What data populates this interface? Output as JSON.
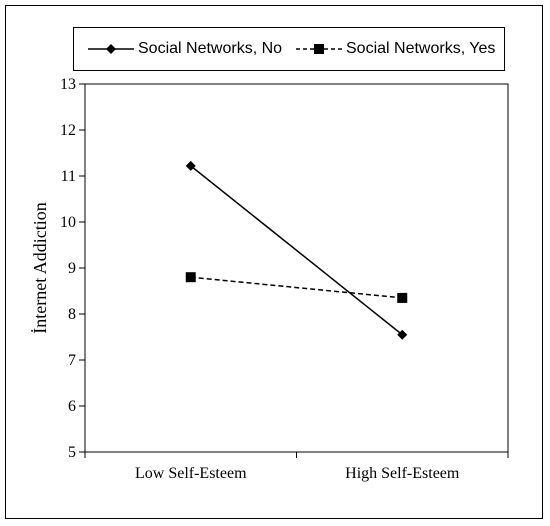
{
  "chart_data": {
    "type": "line",
    "title": "",
    "xlabel": "",
    "ylabel": "İnternet Addiction",
    "categories": [
      "Low Self-Esteem",
      "High Self-Esteem"
    ],
    "ylim": [
      5,
      13
    ],
    "yticks": [
      5,
      6,
      7,
      8,
      9,
      10,
      11,
      12,
      13
    ],
    "grid": false,
    "legend_position": "top",
    "series": [
      {
        "name": "Social Networks, No",
        "values": [
          11.22,
          7.55
        ],
        "line_style": "solid",
        "marker": "diamond",
        "color": "#000000"
      },
      {
        "name": "Social Networks, Yes",
        "values": [
          8.8,
          8.35
        ],
        "line_style": "dashed",
        "marker": "square",
        "color": "#000000"
      }
    ]
  }
}
